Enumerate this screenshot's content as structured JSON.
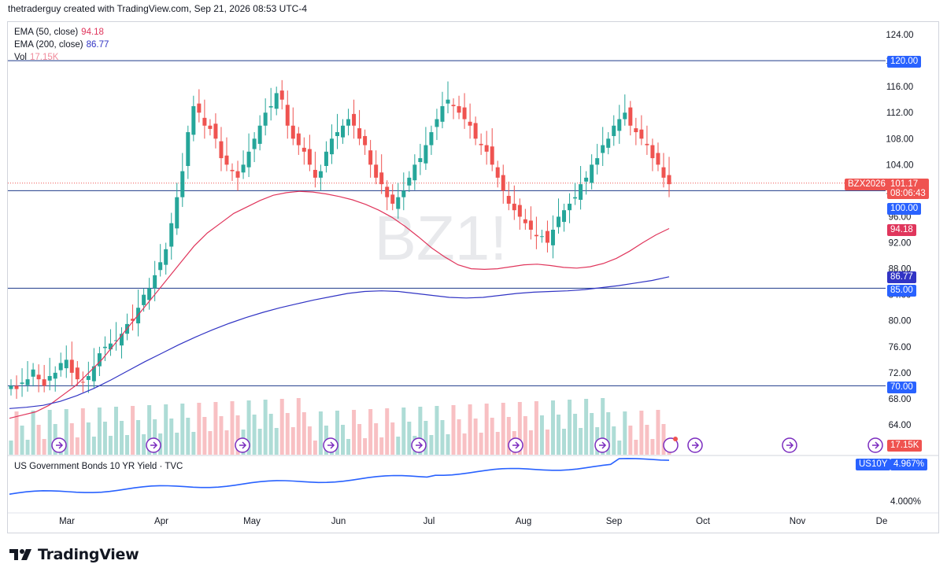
{
  "header": {
    "text": "thetraderguy created with TradingView.com, Sep 21, 2026 08:53 UTC-4"
  },
  "legend": {
    "ema50": {
      "label": "EMA (50, close)",
      "value": "94.18",
      "color": "#e0365c"
    },
    "ema200": {
      "label": "EMA (200, close)",
      "value": "86.77",
      "color": "#3134c4"
    },
    "vol": {
      "label": "Vol",
      "value": "17.15K",
      "color": "#f08a9b"
    }
  },
  "watermark": "BZ1!",
  "price_badges": {
    "symbol": "BZX2026",
    "last": "101.17",
    "countdown": "08:06:43",
    "ema50": "94.18",
    "ema200": "86.77",
    "vol": "17.15K"
  },
  "lower_pane": {
    "title": "US Government Bonds 10 YR Yield · TVC",
    "symbol": "US10Y",
    "value": "4.967%",
    "tick": "4.000%"
  },
  "brand": {
    "name": "TradingView"
  },
  "colors": {
    "up": "#26a69a",
    "down": "#ef5350",
    "hline": "#1e3a8a",
    "accent": "#2962ff"
  },
  "chart_data": {
    "type": "candlestick",
    "title": "",
    "symbol": "BZ1!",
    "y_axis": {
      "ticks": [
        124,
        120,
        116,
        112,
        108,
        104,
        100,
        96,
        92,
        88,
        84,
        80,
        76,
        72,
        68,
        64
      ],
      "ylim": [
        62,
        126
      ]
    },
    "x_axis": {
      "labels": [
        "Mar",
        "Apr",
        "May",
        "Jun",
        "Jul",
        "Aug",
        "Sep",
        "Oct",
        "Nov",
        "De"
      ]
    },
    "horizontal_lines": [
      {
        "value": 120.0,
        "label": "120.00"
      },
      {
        "value": 100.0,
        "label": "100.00"
      },
      {
        "value": 85.0,
        "label": "85.00"
      },
      {
        "value": 70.0,
        "label": "70.00"
      }
    ],
    "last_price": 101.17,
    "candles_close": [
      70,
      69.5,
      70.5,
      71,
      72.5,
      71,
      70,
      71.5,
      72,
      73.5,
      74,
      72,
      71,
      70.5,
      71.5,
      73,
      75,
      76,
      76.5,
      77,
      78,
      79.5,
      80,
      82,
      84,
      85,
      87,
      89,
      91,
      95,
      99,
      103,
      109,
      113,
      112,
      110,
      109.5,
      108,
      105,
      104,
      103,
      102,
      104,
      106,
      108,
      110,
      112,
      113,
      115,
      114,
      110,
      108,
      107,
      106,
      104,
      102,
      103,
      106,
      108,
      109,
      110,
      111,
      110,
      108,
      107,
      104,
      102,
      101,
      99,
      98,
      99,
      100,
      102,
      104,
      105,
      107,
      109,
      111,
      113,
      114,
      113,
      112,
      111,
      110,
      108,
      107,
      106,
      104,
      102,
      100,
      98,
      97,
      96,
      95,
      94,
      93,
      93,
      92,
      94,
      96,
      97,
      98,
      99,
      101,
      102,
      104,
      105,
      107,
      108,
      110,
      111,
      112,
      110,
      109,
      108,
      107,
      105,
      104,
      102,
      101
    ],
    "ema50": [
      65,
      65.5,
      66,
      67,
      68.5,
      70,
      72,
      74,
      76.5,
      79,
      81.5,
      84,
      86.5,
      89,
      91.5,
      93.5,
      95,
      96.5,
      97.5,
      98.5,
      99.3,
      99.7,
      99.9,
      99.8,
      99.5,
      99.1,
      98.6,
      97.9,
      97.0,
      95.9,
      94.5,
      92.9,
      91.2,
      89.8,
      88.6,
      88.0,
      87.9,
      88.0,
      88.3,
      88.6,
      88.7,
      88.5,
      88.2,
      88.1,
      88.3,
      88.8,
      89.6,
      90.7,
      92.0,
      93.2,
      94.18
    ],
    "ema200": [
      66.5,
      66.7,
      67.0,
      67.6,
      68.5,
      69.6,
      70.9,
      72.3,
      73.7,
      75.0,
      76.3,
      77.5,
      78.6,
      79.6,
      80.5,
      81.3,
      82.0,
      82.6,
      83.2,
      83.7,
      84.2,
      84.5,
      84.6,
      84.5,
      84.2,
      83.9,
      83.6,
      83.5,
      83.6,
      83.9,
      84.2,
      84.4,
      84.5,
      84.6,
      84.8,
      85.1,
      85.4,
      85.8,
      86.2,
      86.77
    ],
    "volume_last": "17.15K",
    "series": [
      {
        "name": "EMA (50, close)",
        "last": 94.18
      },
      {
        "name": "EMA (200, close)",
        "last": 86.77
      },
      {
        "name": "Vol",
        "last": "17.15K"
      }
    ]
  }
}
